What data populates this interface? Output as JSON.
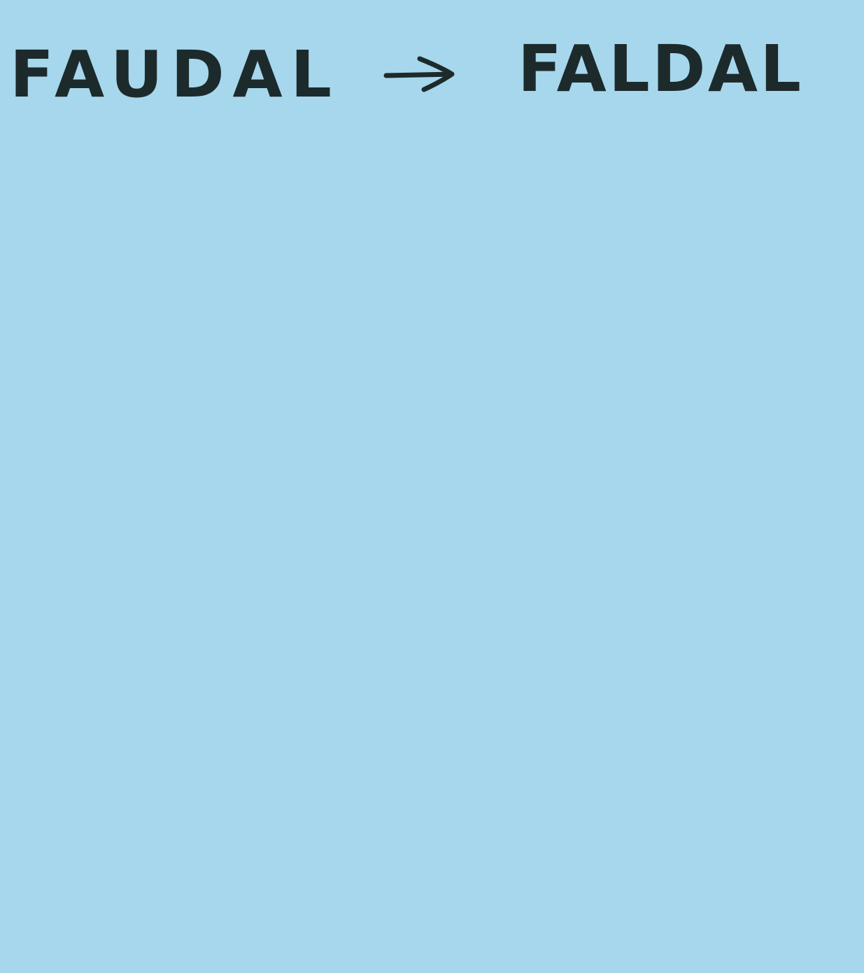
{
  "note": {
    "from": "FAUDAL",
    "to": "FALDAL"
  }
}
